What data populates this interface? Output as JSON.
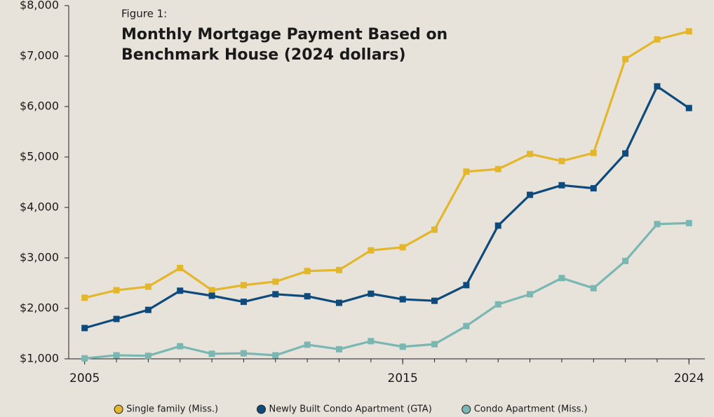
{
  "chart_data": {
    "type": "line",
    "subtitle": "Figure 1:",
    "title": [
      "Monthly Mortgage Payment Based on",
      "Benchmark House (2024 dollars)"
    ],
    "x": [
      2005,
      2006,
      2007,
      2008,
      2009,
      2010,
      2011,
      2012,
      2013,
      2014,
      2015,
      2016,
      2017,
      2018,
      2019,
      2020,
      2021,
      2022,
      2023,
      2024
    ],
    "series": [
      {
        "name": "Single family (Miss.)",
        "color": "#e3b62c",
        "values": [
          2210,
          2360,
          2430,
          2800,
          2360,
          2460,
          2530,
          2740,
          2760,
          3150,
          3210,
          3560,
          4710,
          4760,
          5060,
          4920,
          5080,
          6940,
          7330,
          7490
        ]
      },
      {
        "name": "Newly Built Condo Apartment (GTA)",
        "color": "#0e4a7c",
        "values": [
          1610,
          1790,
          1970,
          2350,
          2250,
          2130,
          2280,
          2240,
          2110,
          2290,
          2180,
          2150,
          2460,
          3640,
          4250,
          4440,
          4380,
          5070,
          6400,
          5970
        ]
      },
      {
        "name": "Condo Apartment (Miss.)",
        "color": "#7ab7b3",
        "values": [
          1010,
          1070,
          1060,
          1250,
          1100,
          1110,
          1070,
          1280,
          1190,
          1350,
          1240,
          1290,
          1650,
          2080,
          2280,
          2600,
          2400,
          2940,
          3670,
          3690
        ]
      }
    ],
    "xlim": [
      2004.5,
      2024.5
    ],
    "xticks": [
      2005,
      2015,
      2024
    ],
    "ylim": [
      1000,
      8000
    ],
    "yticks": [
      {
        "value": 1000,
        "label": "$1,000"
      },
      {
        "value": 2000,
        "label": "$2,000"
      },
      {
        "value": 3000,
        "label": "$3,000"
      },
      {
        "value": 4000,
        "label": "$4,000"
      },
      {
        "value": 5000,
        "label": "$5,000"
      },
      {
        "value": 6000,
        "label": "$6,000"
      },
      {
        "value": 7000,
        "label": "$7,000"
      },
      {
        "value": 8000,
        "label": "$8,000"
      }
    ],
    "legend": "bottom"
  }
}
